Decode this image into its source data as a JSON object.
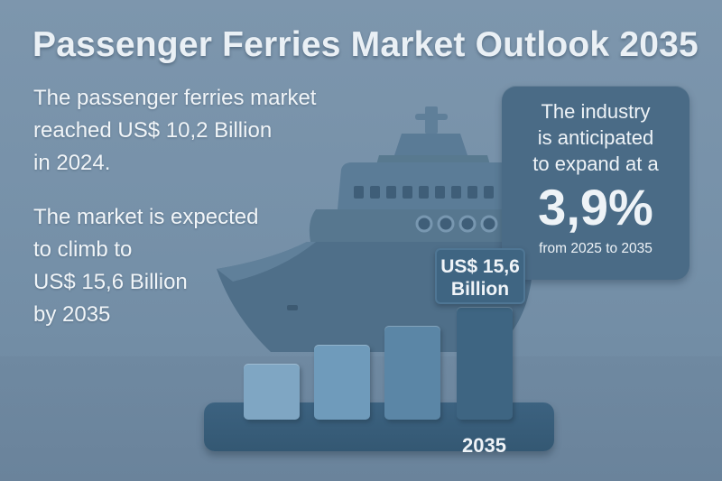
{
  "title": "Passenger Ferries Market Outlook 2035",
  "paragraph1": {
    "lines": [
      "The passenger ferries market",
      "reached US$ 10,2 Billion",
      "in 2024."
    ]
  },
  "paragraph2": {
    "lines": [
      "The market is expected",
      "to climb to",
      "US$ 15,6 Billion",
      "by 2035"
    ]
  },
  "infobox": {
    "line1": "The industry",
    "line2": "is anticipated",
    "line3": "to expand at a",
    "rate": "3,9%",
    "period": "from 2025 to 2035"
  },
  "chart_data": {
    "type": "bar",
    "categories": [
      "",
      "",
      "",
      "2035"
    ],
    "values": [
      10.2,
      12.0,
      13.8,
      15.6
    ],
    "callout_line1": "US$ 15,6",
    "callout_line2": "Billion",
    "colors": [
      "#7fa6c3",
      "#6f9bbb",
      "#5b86a6",
      "#3e6582"
    ]
  },
  "icons": [
    "ferry-ship-icon"
  ]
}
